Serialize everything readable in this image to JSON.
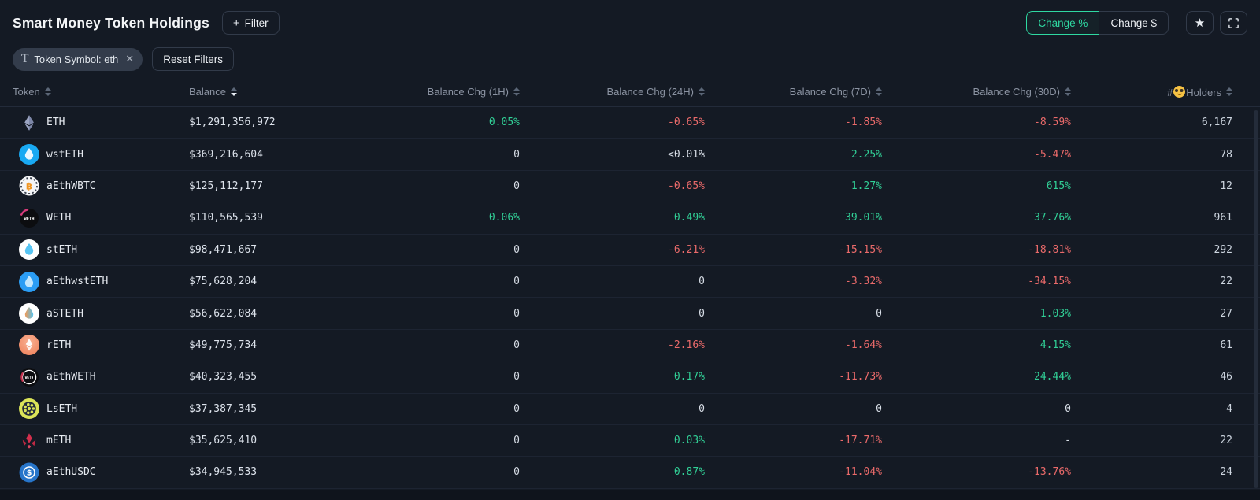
{
  "header": {
    "title": "Smart Money Token Holdings",
    "filter_button": {
      "plus": "+",
      "label": "Filter"
    },
    "change_percent_label": "Change %",
    "change_dollar_label": "Change $",
    "star_glyph": "★",
    "active_mode": "Change %"
  },
  "filters": {
    "chip": {
      "icon_glyph": "T",
      "label": "Token Symbol: eth",
      "close_glyph": "✕"
    },
    "reset_label": "Reset Filters"
  },
  "colors": {
    "background": "#141a24",
    "accent_green": "#2fd9a2",
    "positive_green": "#31cf96",
    "negative_red": "#ea6a6a"
  },
  "table": {
    "columns": [
      {
        "id": "token",
        "label": "Token",
        "align": "left",
        "sortable": true,
        "sorted": null
      },
      {
        "id": "balance",
        "label": "Balance",
        "align": "left",
        "sortable": true,
        "sorted": "desc"
      },
      {
        "id": "chg_1h",
        "label": "Balance Chg (1H)",
        "align": "right",
        "sortable": true,
        "sorted": null
      },
      {
        "id": "chg_24h",
        "label": "Balance Chg (24H)",
        "align": "right",
        "sortable": true,
        "sorted": null
      },
      {
        "id": "chg_7d",
        "label": "Balance Chg (7D)",
        "align": "right",
        "sortable": true,
        "sorted": null
      },
      {
        "id": "chg_30d",
        "label": "Balance Chg (30D)",
        "align": "right",
        "sortable": true,
        "sorted": null
      },
      {
        "id": "holders",
        "label_prefix": "#",
        "emoji_char": "🤓",
        "label_suffix": "Holders",
        "align": "right",
        "sortable": true,
        "sorted": null
      }
    ],
    "rows": [
      {
        "token": "ETH",
        "icon": "eth-logo",
        "balance": "$1,291,356,972",
        "chg_1h": {
          "text": "0.05%",
          "tone": "pos"
        },
        "chg_24h": {
          "text": "-0.65%",
          "tone": "neg"
        },
        "chg_7d": {
          "text": "-1.85%",
          "tone": "neg"
        },
        "chg_30d": {
          "text": "-8.59%",
          "tone": "neg"
        },
        "holders": "6,167"
      },
      {
        "token": "wstETH",
        "icon": "wsteth-logo",
        "balance": "$369,216,604",
        "chg_1h": {
          "text": "0",
          "tone": "neu"
        },
        "chg_24h": {
          "text": "<0.01%",
          "tone": "neu"
        },
        "chg_7d": {
          "text": "2.25%",
          "tone": "pos"
        },
        "chg_30d": {
          "text": "-5.47%",
          "tone": "neg"
        },
        "holders": "78"
      },
      {
        "token": "aEthWBTC",
        "icon": "wbtc-logo",
        "balance": "$125,112,177",
        "chg_1h": {
          "text": "0",
          "tone": "neu"
        },
        "chg_24h": {
          "text": "-0.65%",
          "tone": "neg"
        },
        "chg_7d": {
          "text": "1.27%",
          "tone": "pos"
        },
        "chg_30d": {
          "text": "615%",
          "tone": "pos"
        },
        "holders": "12"
      },
      {
        "token": "WETH",
        "icon": "weth-logo",
        "balance": "$110,565,539",
        "chg_1h": {
          "text": "0.06%",
          "tone": "pos"
        },
        "chg_24h": {
          "text": "0.49%",
          "tone": "pos"
        },
        "chg_7d": {
          "text": "39.01%",
          "tone": "pos"
        },
        "chg_30d": {
          "text": "37.76%",
          "tone": "pos"
        },
        "holders": "961"
      },
      {
        "token": "stETH",
        "icon": "steth-logo",
        "balance": "$98,471,667",
        "chg_1h": {
          "text": "0",
          "tone": "neu"
        },
        "chg_24h": {
          "text": "-6.21%",
          "tone": "neg"
        },
        "chg_7d": {
          "text": "-15.15%",
          "tone": "neg"
        },
        "chg_30d": {
          "text": "-18.81%",
          "tone": "neg"
        },
        "holders": "292"
      },
      {
        "token": "aEthwstETH",
        "icon": "aethwsteth-logo",
        "balance": "$75,628,204",
        "chg_1h": {
          "text": "0",
          "tone": "neu"
        },
        "chg_24h": {
          "text": "0",
          "tone": "neu"
        },
        "chg_7d": {
          "text": "-3.32%",
          "tone": "neg"
        },
        "chg_30d": {
          "text": "-34.15%",
          "tone": "neg"
        },
        "holders": "22"
      },
      {
        "token": "aSTETH",
        "icon": "asteth-logo",
        "balance": "$56,622,084",
        "chg_1h": {
          "text": "0",
          "tone": "neu"
        },
        "chg_24h": {
          "text": "0",
          "tone": "neu"
        },
        "chg_7d": {
          "text": "0",
          "tone": "neu"
        },
        "chg_30d": {
          "text": "1.03%",
          "tone": "pos"
        },
        "holders": "27"
      },
      {
        "token": "rETH",
        "icon": "reth-logo",
        "balance": "$49,775,734",
        "chg_1h": {
          "text": "0",
          "tone": "neu"
        },
        "chg_24h": {
          "text": "-2.16%",
          "tone": "neg"
        },
        "chg_7d": {
          "text": "-1.64%",
          "tone": "neg"
        },
        "chg_30d": {
          "text": "4.15%",
          "tone": "pos"
        },
        "holders": "61"
      },
      {
        "token": "aEthWETH",
        "icon": "aethweth-logo",
        "balance": "$40,323,455",
        "chg_1h": {
          "text": "0",
          "tone": "neu"
        },
        "chg_24h": {
          "text": "0.17%",
          "tone": "pos"
        },
        "chg_7d": {
          "text": "-11.73%",
          "tone": "neg"
        },
        "chg_30d": {
          "text": "24.44%",
          "tone": "pos"
        },
        "holders": "46"
      },
      {
        "token": "LsETH",
        "icon": "lseth-logo",
        "balance": "$37,387,345",
        "chg_1h": {
          "text": "0",
          "tone": "neu"
        },
        "chg_24h": {
          "text": "0",
          "tone": "neu"
        },
        "chg_7d": {
          "text": "0",
          "tone": "neu"
        },
        "chg_30d": {
          "text": "0",
          "tone": "neu"
        },
        "holders": "4"
      },
      {
        "token": "mETH",
        "icon": "meth-logo",
        "balance": "$35,625,410",
        "chg_1h": {
          "text": "0",
          "tone": "neu"
        },
        "chg_24h": {
          "text": "0.03%",
          "tone": "pos"
        },
        "chg_7d": {
          "text": "-17.71%",
          "tone": "neg"
        },
        "chg_30d": {
          "text": "-",
          "tone": "neu"
        },
        "holders": "22"
      },
      {
        "token": "aEthUSDC",
        "icon": "usdc-logo",
        "balance": "$34,945,533",
        "chg_1h": {
          "text": "0",
          "tone": "neu"
        },
        "chg_24h": {
          "text": "0.87%",
          "tone": "pos"
        },
        "chg_7d": {
          "text": "-11.04%",
          "tone": "neg"
        },
        "chg_30d": {
          "text": "-13.76%",
          "tone": "neg"
        },
        "holders": "24"
      }
    ]
  }
}
